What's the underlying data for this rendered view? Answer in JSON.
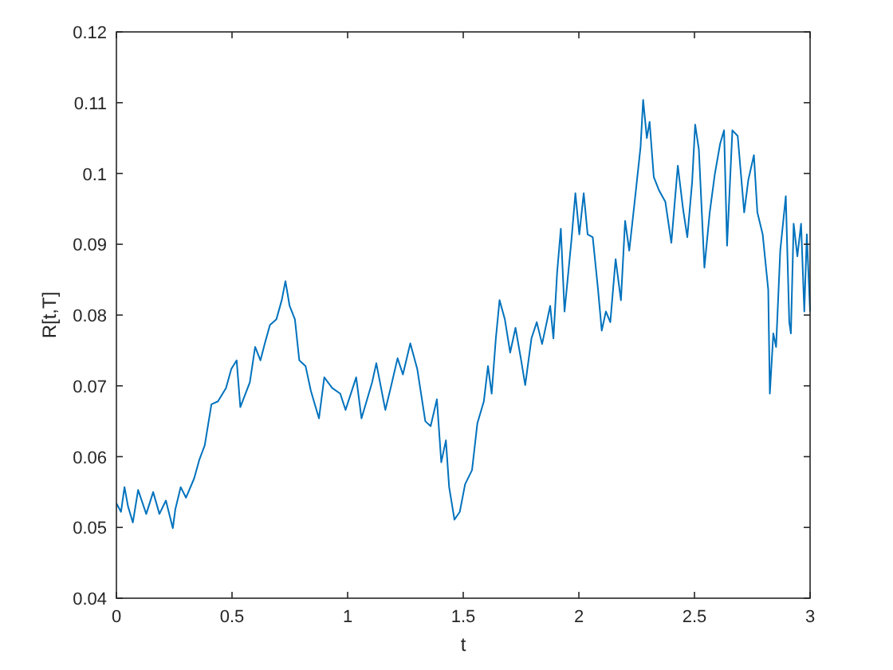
{
  "chart_data": {
    "type": "line",
    "xlabel": "t",
    "ylabel": "R[t,T]",
    "xlim": [
      0,
      3
    ],
    "xticks": [
      0,
      0.5,
      1,
      1.5,
      2,
      2.5,
      3
    ],
    "ylim": [
      0.04,
      0.12
    ],
    "yticks": [
      0.04,
      0.05,
      0.06,
      0.07,
      0.08,
      0.09,
      0.1,
      0.11,
      0.12
    ],
    "marker": "none",
    "line_style": "solid",
    "series": [
      {
        "color": "#0072bd",
        "x": [
          0,
          0.02,
          0.035,
          0.05,
          0.071,
          0.094,
          0.129,
          0.159,
          0.186,
          0.214,
          0.244,
          0.255,
          0.278,
          0.301,
          0.336,
          0.359,
          0.382,
          0.411,
          0.439,
          0.474,
          0.497,
          0.52,
          0.536,
          0.577,
          0.6,
          0.623,
          0.641,
          0.664,
          0.692,
          0.715,
          0.731,
          0.749,
          0.772,
          0.791,
          0.818,
          0.841,
          0.876,
          0.899,
          0.933,
          0.968,
          0.991,
          1.037,
          1.06,
          1.106,
          1.124,
          1.163,
          1.186,
          1.216,
          1.239,
          1.271,
          1.301,
          1.336,
          1.359,
          1.386,
          1.405,
          1.425,
          1.439,
          1.462,
          1.485,
          1.508,
          1.538,
          1.561,
          1.589,
          1.607,
          1.623,
          1.641,
          1.657,
          1.68,
          1.703,
          1.726,
          1.749,
          1.768,
          1.795,
          1.818,
          1.841,
          1.876,
          1.89,
          1.906,
          1.922,
          1.938,
          1.968,
          1.985,
          2.002,
          2.021,
          2.038,
          2.06,
          2.083,
          2.099,
          2.117,
          2.136,
          2.159,
          2.182,
          2.2,
          2.218,
          2.244,
          2.267,
          2.278,
          2.294,
          2.306,
          2.324,
          2.347,
          2.374,
          2.4,
          2.428,
          2.451,
          2.469,
          2.49,
          2.503,
          2.519,
          2.543,
          2.566,
          2.588,
          2.611,
          2.628,
          2.641,
          2.664,
          2.687,
          2.715,
          2.733,
          2.757,
          2.772,
          2.795,
          2.819,
          2.826,
          2.841,
          2.853,
          2.871,
          2.895,
          2.91,
          2.917,
          2.929,
          2.945,
          2.961,
          2.975,
          2.986,
          3
        ],
        "values": [
          0.0534,
          0.0522,
          0.0557,
          0.053,
          0.0507,
          0.0553,
          0.0519,
          0.055,
          0.0519,
          0.0538,
          0.0499,
          0.0526,
          0.0557,
          0.0542,
          0.0569,
          0.0596,
          0.0616,
          0.0674,
          0.0678,
          0.0697,
          0.0724,
          0.0736,
          0.067,
          0.0705,
          0.0755,
          0.0736,
          0.0759,
          0.0786,
          0.0794,
          0.0821,
          0.0848,
          0.0813,
          0.0794,
          0.0736,
          0.0728,
          0.0693,
          0.0654,
          0.0712,
          0.0697,
          0.0689,
          0.0666,
          0.0712,
          0.0654,
          0.0705,
          0.0732,
          0.0666,
          0.0697,
          0.0739,
          0.0716,
          0.076,
          0.0724,
          0.065,
          0.0643,
          0.0681,
          0.0592,
          0.0623,
          0.0557,
          0.0511,
          0.0522,
          0.0561,
          0.0581,
          0.0647,
          0.0678,
          0.0728,
          0.0689,
          0.0767,
          0.0821,
          0.0794,
          0.0747,
          0.0782,
          0.0739,
          0.0701,
          0.0767,
          0.079,
          0.0759,
          0.0813,
          0.0767,
          0.086,
          0.0922,
          0.0805,
          0.0906,
          0.0972,
          0.0914,
          0.0972,
          0.0914,
          0.091,
          0.0836,
          0.0778,
          0.0805,
          0.079,
          0.0879,
          0.0821,
          0.0933,
          0.0891,
          0.0968,
          0.1038,
          0.1104,
          0.105,
          0.1073,
          0.0995,
          0.0976,
          0.096,
          0.0902,
          0.1011,
          0.0949,
          0.091,
          0.0988,
          0.1069,
          0.1034,
          0.0867,
          0.0945,
          0.0999,
          0.1042,
          0.1061,
          0.0898,
          0.1061,
          0.1053,
          0.0945,
          0.0991,
          0.1026,
          0.0945,
          0.0914,
          0.0836,
          0.0689,
          0.0774,
          0.0755,
          0.0891,
          0.0968,
          0.079,
          0.0774,
          0.0929,
          0.0883,
          0.0929,
          0.0805,
          0.0914,
          0.0805
        ]
      }
    ]
  }
}
